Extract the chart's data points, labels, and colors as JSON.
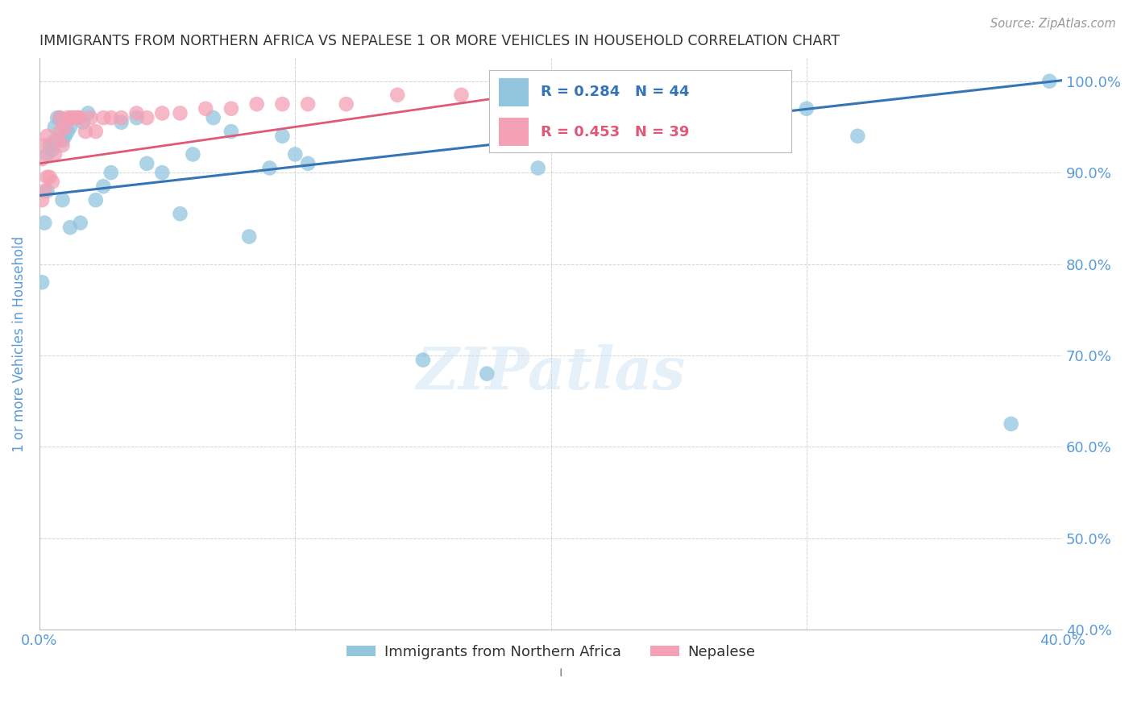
{
  "title": "IMMIGRANTS FROM NORTHERN AFRICA VS NEPALESE 1 OR MORE VEHICLES IN HOUSEHOLD CORRELATION CHART",
  "source": "Source: ZipAtlas.com",
  "ylabel": "1 or more Vehicles in Household",
  "legend_label1": "Immigrants from Northern Africa",
  "legend_label2": "Nepalese",
  "R1": 0.284,
  "N1": 44,
  "R2": 0.453,
  "N2": 39,
  "xlim": [
    0.0,
    0.4
  ],
  "ylim": [
    0.4,
    1.025
  ],
  "color_blue": "#92c5de",
  "color_pink": "#f4a0b5",
  "line_blue": "#3575b5",
  "line_pink": "#e05878",
  "background": "#ffffff",
  "grid_color": "#c8c8c8",
  "title_color": "#333333",
  "axis_label_color": "#5b9bd5",
  "blue_scatter_x": [
    0.001,
    0.002,
    0.003,
    0.004,
    0.005,
    0.006,
    0.007,
    0.008,
    0.009,
    0.01,
    0.011,
    0.012,
    0.013,
    0.015,
    0.017,
    0.019,
    0.022,
    0.025,
    0.028,
    0.032,
    0.038,
    0.042,
    0.048,
    0.055,
    0.06,
    0.068,
    0.075,
    0.082,
    0.09,
    0.095,
    0.1,
    0.105,
    0.15,
    0.175,
    0.195,
    0.3,
    0.32,
    0.38,
    0.395,
    0.003,
    0.006,
    0.009,
    0.012,
    0.016
  ],
  "blue_scatter_y": [
    0.78,
    0.845,
    0.88,
    0.93,
    0.925,
    0.95,
    0.96,
    0.96,
    0.935,
    0.94,
    0.945,
    0.95,
    0.96,
    0.96,
    0.955,
    0.965,
    0.87,
    0.885,
    0.9,
    0.955,
    0.96,
    0.91,
    0.9,
    0.855,
    0.92,
    0.96,
    0.945,
    0.83,
    0.905,
    0.94,
    0.92,
    0.91,
    0.695,
    0.68,
    0.905,
    0.97,
    0.94,
    0.625,
    1.0,
    0.92,
    0.935,
    0.87,
    0.84,
    0.845
  ],
  "pink_scatter_x": [
    0.001,
    0.001,
    0.002,
    0.002,
    0.003,
    0.003,
    0.004,
    0.005,
    0.006,
    0.007,
    0.008,
    0.008,
    0.009,
    0.01,
    0.011,
    0.012,
    0.013,
    0.014,
    0.015,
    0.016,
    0.018,
    0.02,
    0.022,
    0.025,
    0.028,
    0.032,
    0.038,
    0.042,
    0.048,
    0.055,
    0.065,
    0.075,
    0.085,
    0.095,
    0.105,
    0.12,
    0.14,
    0.165,
    0.195
  ],
  "pink_scatter_y": [
    0.87,
    0.915,
    0.88,
    0.93,
    0.895,
    0.94,
    0.895,
    0.89,
    0.92,
    0.935,
    0.945,
    0.96,
    0.93,
    0.95,
    0.96,
    0.96,
    0.96,
    0.96,
    0.96,
    0.96,
    0.945,
    0.96,
    0.945,
    0.96,
    0.96,
    0.96,
    0.965,
    0.96,
    0.965,
    0.965,
    0.97,
    0.97,
    0.975,
    0.975,
    0.975,
    0.975,
    0.985,
    0.985,
    0.99
  ],
  "blue_line_x0": 0.0,
  "blue_line_x1": 0.4,
  "blue_line_y0": 0.875,
  "blue_line_y1": 1.001,
  "pink_line_x0": 0.0,
  "pink_line_x1": 0.2,
  "pink_line_y0": 0.91,
  "pink_line_y1": 0.99
}
